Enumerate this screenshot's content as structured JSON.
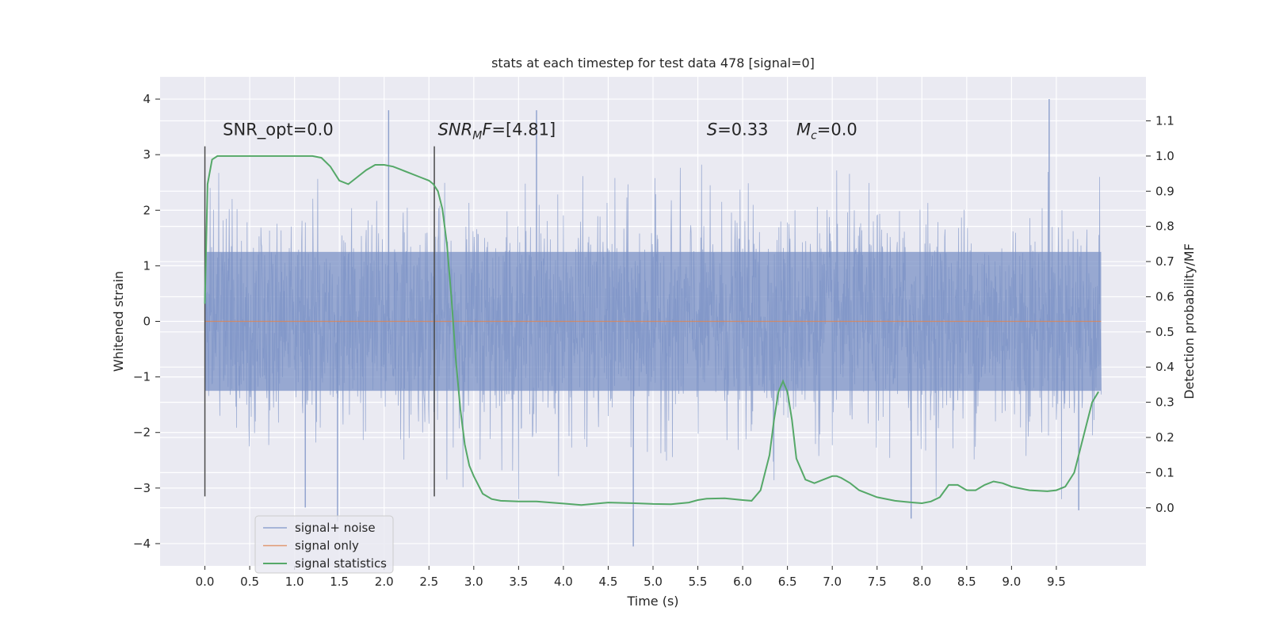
{
  "chart_data": {
    "type": "line",
    "title": "stats at each timestep for test data 478 [signal=0]",
    "xlabel": "Time (s)",
    "ylabel": "Whitened strain",
    "y2label": "Detection probability/MF",
    "xlim": [
      -0.5,
      10.5
    ],
    "ylim": [
      -4.4,
      4.4
    ],
    "y2lim": [
      -0.165,
      1.225
    ],
    "xticks": [
      0.0,
      0.5,
      1.0,
      1.5,
      2.0,
      2.5,
      3.0,
      3.5,
      4.0,
      4.5,
      5.0,
      5.5,
      6.0,
      6.5,
      7.0,
      7.5,
      8.0,
      8.5,
      9.0,
      9.5
    ],
    "xtick_labels": [
      "0.0",
      "0.5",
      "1.0",
      "1.5",
      "2.0",
      "2.5",
      "3.0",
      "3.5",
      "4.0",
      "4.5",
      "5.0",
      "5.5",
      "6.0",
      "6.5",
      "7.0",
      "7.5",
      "8.0",
      "8.5",
      "9.0",
      "9.5"
    ],
    "yticks": [
      4,
      3,
      2,
      1,
      0,
      -1,
      -2,
      -3,
      -4
    ],
    "ytick_labels": [
      "4",
      "3",
      "2",
      "1",
      "0",
      "−1",
      "−2",
      "−3",
      "−4"
    ],
    "y2ticks": [
      1.1,
      1.0,
      0.9,
      0.8,
      0.7,
      0.6,
      0.5,
      0.4,
      0.3,
      0.2,
      0.1,
      0.0
    ],
    "y2tick_labels": [
      "1.1",
      "1.0",
      "0.9",
      "0.8",
      "0.7",
      "0.6",
      "0.5",
      "0.4",
      "0.3",
      "0.2",
      "0.1",
      "0.0"
    ],
    "grid": true,
    "legend_position": "lower-left",
    "series": [
      {
        "name": "signal+ noise",
        "axis": "left",
        "color": "#7b92c6",
        "style": "dense noise trace",
        "x_range": [
          0.0,
          10.0
        ],
        "envelope_typical": [
          -2.0,
          2.0
        ],
        "peaks": [
          {
            "x": 2.05,
            "y": 3.8
          },
          {
            "x": 3.7,
            "y": 3.8
          },
          {
            "x": 9.42,
            "y": 4.0
          },
          {
            "x": 4.78,
            "y": -4.05
          },
          {
            "x": 1.48,
            "y": -3.6
          },
          {
            "x": 7.88,
            "y": -3.55
          },
          {
            "x": 9.75,
            "y": -3.4
          },
          {
            "x": 1.12,
            "y": -3.35
          }
        ]
      },
      {
        "name": "signal only",
        "axis": "left",
        "color": "#dd8452",
        "x": [
          0.0,
          10.0
        ],
        "y": [
          0.0,
          0.0
        ]
      },
      {
        "name": "signal statistics",
        "axis": "right",
        "color": "#55a868",
        "x": [
          0.0,
          0.03,
          0.08,
          0.14,
          0.2,
          0.3,
          0.5,
          0.8,
          1.0,
          1.2,
          1.3,
          1.4,
          1.5,
          1.6,
          1.7,
          1.8,
          1.9,
          2.0,
          2.1,
          2.2,
          2.3,
          2.4,
          2.5,
          2.55,
          2.6,
          2.65,
          2.7,
          2.75,
          2.8,
          2.85,
          2.9,
          2.95,
          3.0,
          3.1,
          3.2,
          3.3,
          3.5,
          3.7,
          4.0,
          4.2,
          4.5,
          4.8,
          5.0,
          5.2,
          5.4,
          5.5,
          5.6,
          5.8,
          6.0,
          6.1,
          6.2,
          6.3,
          6.35,
          6.4,
          6.45,
          6.5,
          6.55,
          6.6,
          6.7,
          6.8,
          6.9,
          7.0,
          7.05,
          7.1,
          7.2,
          7.3,
          7.5,
          7.7,
          7.9,
          8.0,
          8.1,
          8.2,
          8.3,
          8.4,
          8.5,
          8.6,
          8.7,
          8.8,
          8.9,
          9.0,
          9.2,
          9.4,
          9.5,
          9.6,
          9.7,
          9.8,
          9.9,
          9.97
        ],
        "y": [
          0.58,
          0.92,
          0.99,
          1.0,
          1.0,
          1.0,
          1.0,
          1.0,
          1.0,
          1.0,
          0.995,
          0.97,
          0.93,
          0.92,
          0.94,
          0.96,
          0.975,
          0.975,
          0.97,
          0.96,
          0.95,
          0.94,
          0.93,
          0.92,
          0.9,
          0.85,
          0.75,
          0.6,
          0.42,
          0.28,
          0.18,
          0.12,
          0.09,
          0.04,
          0.025,
          0.02,
          0.018,
          0.018,
          0.012,
          0.008,
          0.015,
          0.013,
          0.011,
          0.01,
          0.015,
          0.022,
          0.026,
          0.027,
          0.022,
          0.02,
          0.05,
          0.15,
          0.25,
          0.33,
          0.36,
          0.33,
          0.25,
          0.14,
          0.08,
          0.07,
          0.08,
          0.09,
          0.09,
          0.085,
          0.07,
          0.05,
          0.03,
          0.02,
          0.015,
          0.013,
          0.018,
          0.03,
          0.065,
          0.065,
          0.05,
          0.05,
          0.065,
          0.075,
          0.07,
          0.06,
          0.05,
          0.047,
          0.05,
          0.06,
          0.1,
          0.2,
          0.3,
          0.33
        ]
      }
    ],
    "vlines": [
      {
        "x": 0.0,
        "ymin": -3.15,
        "ymax": 3.15
      },
      {
        "x": 2.56,
        "ymin": -3.15,
        "ymax": 3.15
      }
    ],
    "annotations": [
      {
        "x": 0.2,
        "y": 3.35,
        "text": "SNR_opt=0.0"
      },
      {
        "x": 2.6,
        "y": 3.35,
        "text": "SNRMF=[4.81]",
        "math_base": "SNR",
        "math_sub": "M",
        "math_after": "F=[4.81]"
      },
      {
        "x": 5.6,
        "y": 3.35,
        "text": "S=0.33",
        "math_base": "S",
        "math_after": "=0.33"
      },
      {
        "x": 6.6,
        "y": 3.35,
        "text": "Mc=0.0",
        "math_base": "M",
        "math_sub": "c",
        "math_after": "=0.0"
      }
    ]
  }
}
